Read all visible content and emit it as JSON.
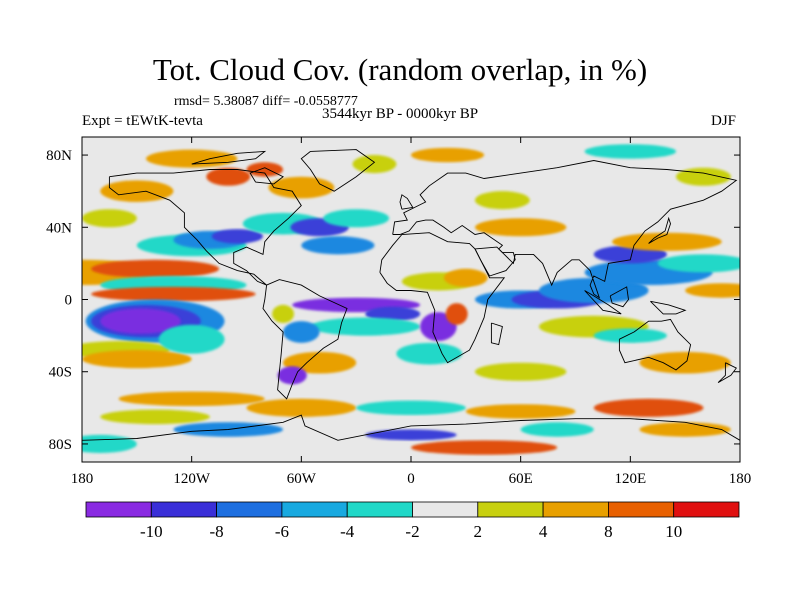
{
  "title": "Tot. Cloud Cov. (random overlap, in %)",
  "stats": "rmsd= 5.38087 diff= -0.0558777",
  "experiment": "Expt = tEWtK-tevta",
  "period": "3544kyr BP - 0000kyr BP",
  "season": "DJF",
  "lat_ticks": [
    "80N",
    "40N",
    "0",
    "40S",
    "80S"
  ],
  "lon_ticks": [
    "180",
    "120W",
    "60W",
    "0",
    "60E",
    "120E",
    "180"
  ],
  "colorbar": {
    "labels": [
      "-10",
      "-8",
      "-6",
      "-4",
      "-2",
      "2",
      "4",
      "8",
      "10"
    ],
    "colors": [
      "#8a2be2",
      "#3a2fd8",
      "#1e6fe0",
      "#18a9e0",
      "#20d8c8",
      "#e8e8e8",
      "#c8d010",
      "#e8a000",
      "#e86000",
      "#e01010"
    ]
  },
  "map_colors": {
    "neutral": "#e8e8e8",
    "strong_negative": "#7a2ee0",
    "negative": "#3a40d8",
    "mid_negative": "#1e88e0",
    "weak_negative": "#20d8c8",
    "weak_positive": "#c8d010",
    "positive": "#e8a000",
    "strong_positive": "#e05010",
    "max_positive": "#d81010"
  }
}
